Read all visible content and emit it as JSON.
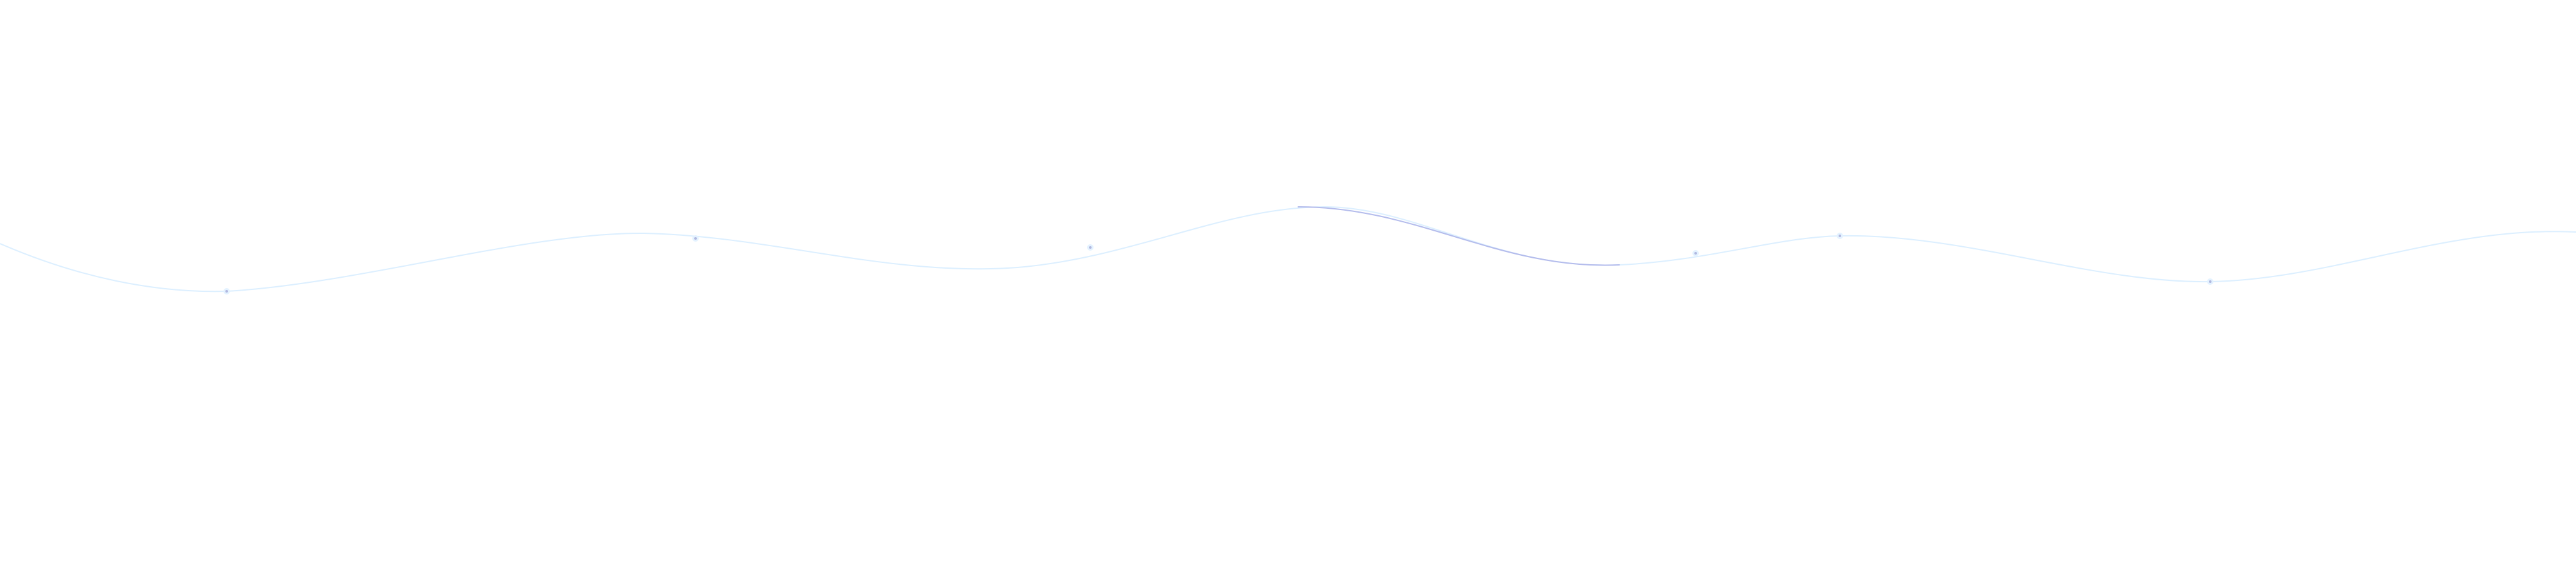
{
  "colors": {
    "background": "#ffffff",
    "wave_line": "#dcefff",
    "wave_highlight": "#b4bcec",
    "dot": "#b0b8e0",
    "dot_glow": "#e4f2ff"
  }
}
